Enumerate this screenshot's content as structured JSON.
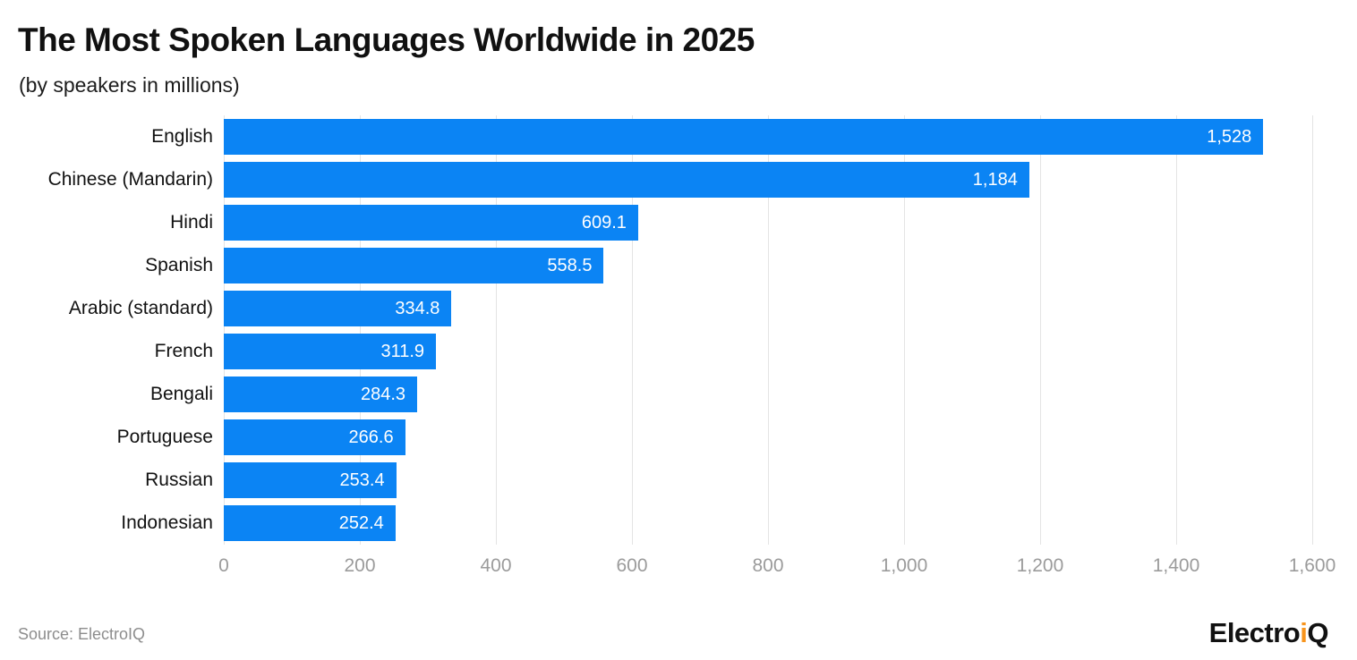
{
  "header": {
    "title": "The Most Spoken Languages Worldwide in 2025",
    "subtitle": "(by speakers in millions)"
  },
  "chart_data": {
    "type": "bar",
    "orientation": "horizontal",
    "title": "The Most Spoken Languages Worldwide in 2025",
    "subtitle": "(by speakers in millions)",
    "categories": [
      "English",
      "Chinese (Mandarin)",
      "Hindi",
      "Spanish",
      "Arabic (standard)",
      "French",
      "Bengali",
      "Portuguese",
      "Russian",
      "Indonesian"
    ],
    "values": [
      1528,
      1184,
      609.1,
      558.5,
      334.8,
      311.9,
      284.3,
      266.6,
      253.4,
      252.4
    ],
    "value_labels": [
      "1,528",
      "1,184",
      "609.1",
      "558.5",
      "334.8",
      "311.9",
      "284.3",
      "266.6",
      "253.4",
      "252.4"
    ],
    "xlabel": "",
    "ylabel": "",
    "xlim": [
      0,
      1600
    ],
    "x_ticks": [
      0,
      200,
      400,
      600,
      800,
      1000,
      1200,
      1400,
      1600
    ],
    "x_tick_labels": [
      "0",
      "200",
      "400",
      "600",
      "800",
      "1,000",
      "1,200",
      "1,400",
      "1,600"
    ],
    "grid": true,
    "legend": false,
    "bar_color": "#0b84f4",
    "value_label_color": "#ffffff"
  },
  "footer": {
    "source": "Source: ElectroIQ",
    "logo": {
      "prefix": "Electro",
      "accent": "i",
      "suffix": "Q",
      "accent_color": "#f7941d"
    }
  }
}
